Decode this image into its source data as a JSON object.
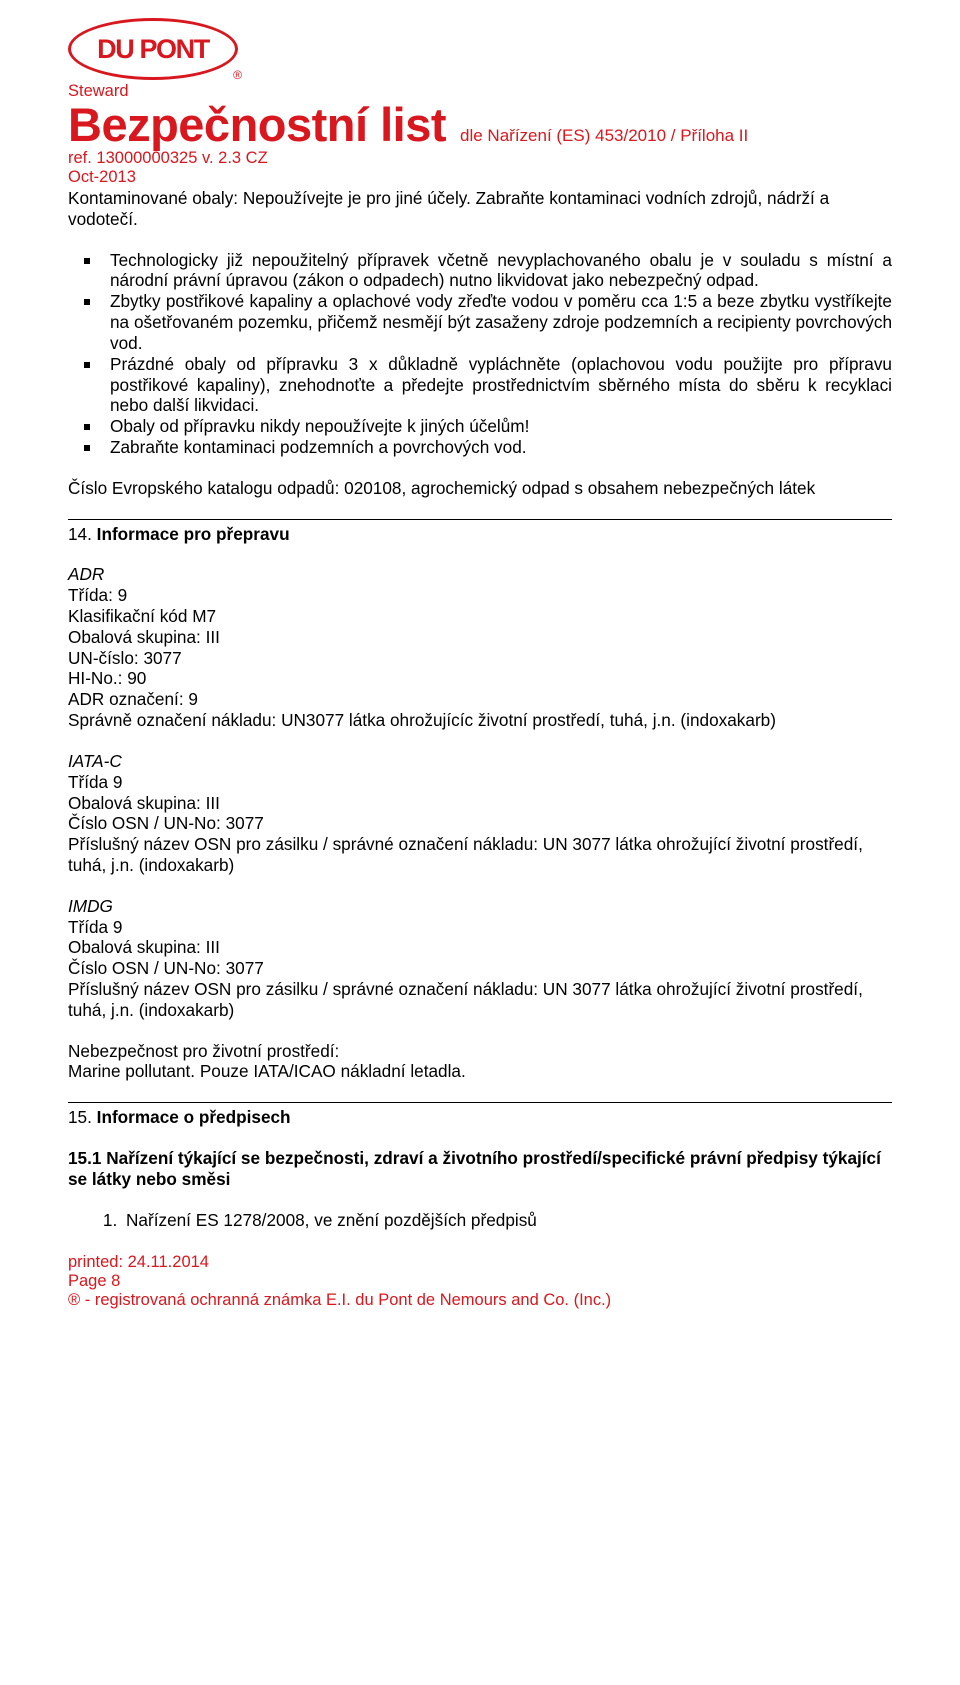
{
  "header": {
    "logo_text": "DU PONT",
    "steward": "Steward",
    "title": "Bezpečnostní list",
    "subtitle": "dle Nařízení (ES)  453/2010 / Příloha II",
    "ref": "ref.  13000000325 v. 2.3 CZ",
    "date": "Oct-2013"
  },
  "intro": "Kontaminované obaly: Nepoužívejte je pro jiné účely. Zabraňte kontaminaci vodních zdrojů, nádrží a vodotečí.",
  "bullets": [
    "Technologicky již nepoužitelný přípravek včetně nevyplachovaného obalu je v souladu s místní a národní právní úpravou (zákon o odpadech) nutno likvidovat jako nebezpečný odpad.",
    "Zbytky postřikové kapaliny a oplachové vody zřeďte vodou v poměru cca 1:5 a beze zbytku vystříkejte na ošetřovaném pozemku, přičemž nesmějí být zasaženy zdroje podzemních a recipienty povrchových vod.",
    "Prázdné obaly od přípravku 3 x důkladně vypláchněte (oplachovou vodu použijte pro přípravu postřikové kapaliny), znehodnoťte a předejte prostřednictvím sběrného místa do sběru k recyklaci nebo další likvidaci.",
    "Obaly od přípravku nikdy nepoužívejte k jiných účelům!",
    "Zabraňte kontaminaci podzemních a povrchových vod."
  ],
  "catalog": "Číslo Evropského katalogu odpadů: 020108, agrochemický odpad s obsahem nebezpečných látek",
  "s14": {
    "heading": "14. Informace pro přepravu",
    "adr_label": "ADR",
    "adr_lines": [
      "Třída: 9",
      "Klasifikační kód M7",
      "Obalová skupina: III",
      "UN-číslo: 3077",
      "HI-No.: 90",
      "ADR označení: 9",
      "Správně označení nákladu: UN3077 látka ohrožujícíc životní prostředí, tuhá, j.n. (indoxakarb)"
    ],
    "iata_label": "IATA-C",
    "iata_lines": [
      "Třída 9",
      "Obalová skupina: III",
      "Číslo OSN / UN-No: 3077",
      "Příslušný název OSN pro zásilku / správné označení nákladu: UN 3077 látka ohrožující životní prostředí, tuhá, j.n. (indoxakarb)"
    ],
    "imdg_label": "IMDG",
    "imdg_lines": [
      "Třída 9",
      "Obalová skupina: III",
      "Číslo OSN / UN-No: 3077",
      "Příslušný název OSN pro zásilku / správné  označení nákladu: UN 3077 látka ohrožující životní prostředí, tuhá, j.n. (indoxakarb)"
    ],
    "env_label": "Nebezpečnost pro životní prostředí:",
    "env_text": "Marine pollutant. Pouze IATA/ICAO nákladní letadla."
  },
  "s15": {
    "heading": "15. Informace o předpisech",
    "sub": "15.1 Nařízení týkající se bezpečnosti, zdraví a životního prostředí/specifické právní předpisy týkající se látky nebo směsi",
    "item1": "Nařízení ES 1278/2008, ve znění pozdějších předpisů"
  },
  "footer": {
    "printed": "printed: 24.11.2014",
    "page": "Page 8",
    "trademark": "® - registrovaná ochranná známka E.I. du Pont de Nemours and Co. (Inc.)"
  }
}
